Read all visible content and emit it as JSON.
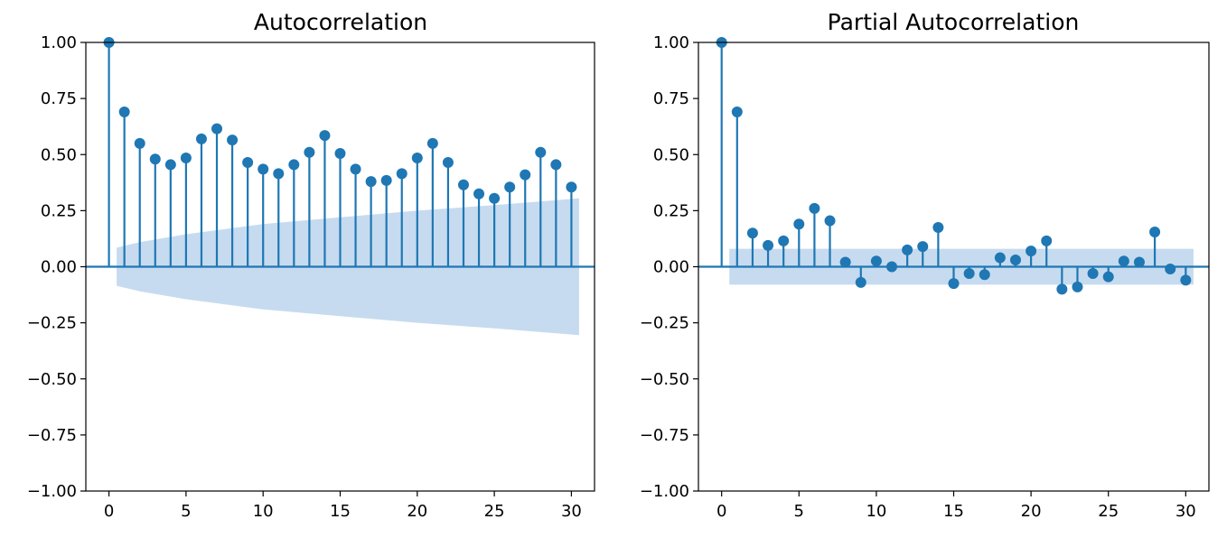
{
  "chart_data": [
    {
      "type": "stem",
      "title": "Autocorrelation",
      "xlabel": "",
      "ylabel": "",
      "xlim": [
        -1.5,
        31.5
      ],
      "ylim": [
        -1.0,
        1.0
      ],
      "xticks": [
        0,
        5,
        10,
        15,
        20,
        25,
        30
      ],
      "yticks": [
        -1.0,
        -0.75,
        -0.5,
        -0.25,
        0.0,
        0.25,
        0.5,
        0.75,
        1.0
      ],
      "xtick_labels": [
        "0",
        "5",
        "10",
        "15",
        "20",
        "25",
        "30"
      ],
      "ytick_labels": [
        "−1.00",
        "−0.75",
        "−0.50",
        "−0.25",
        "0.00",
        "0.25",
        "0.50",
        "0.75",
        "1.00"
      ],
      "x": [
        0,
        1,
        2,
        3,
        4,
        5,
        6,
        7,
        8,
        9,
        10,
        11,
        12,
        13,
        14,
        15,
        16,
        17,
        18,
        19,
        20,
        21,
        22,
        23,
        24,
        25,
        26,
        27,
        28,
        29,
        30
      ],
      "values": [
        1.0,
        0.69,
        0.55,
        0.48,
        0.455,
        0.485,
        0.57,
        0.615,
        0.565,
        0.465,
        0.435,
        0.415,
        0.455,
        0.51,
        0.585,
        0.505,
        0.435,
        0.38,
        0.385,
        0.415,
        0.485,
        0.55,
        0.465,
        0.365,
        0.325,
        0.305,
        0.355,
        0.41,
        0.51,
        0.455,
        0.355
      ],
      "confidence_band": {
        "x_range": [
          0.5,
          30.5
        ],
        "x": [
          0.5,
          2,
          5,
          10,
          15,
          20,
          25,
          30.5
        ],
        "upper": [
          0.085,
          0.11,
          0.145,
          0.19,
          0.22,
          0.25,
          0.275,
          0.305
        ]
      },
      "grid": false
    },
    {
      "type": "stem",
      "title": "Partial Autocorrelation",
      "xlabel": "",
      "ylabel": "",
      "xlim": [
        -1.5,
        31.5
      ],
      "ylim": [
        -1.0,
        1.0
      ],
      "xticks": [
        0,
        5,
        10,
        15,
        20,
        25,
        30
      ],
      "yticks": [
        -1.0,
        -0.75,
        -0.5,
        -0.25,
        0.0,
        0.25,
        0.5,
        0.75,
        1.0
      ],
      "xtick_labels": [
        "0",
        "5",
        "10",
        "15",
        "20",
        "25",
        "30"
      ],
      "ytick_labels": [
        "−1.00",
        "−0.75",
        "−0.50",
        "−0.25",
        "0.00",
        "0.25",
        "0.50",
        "0.75",
        "1.00"
      ],
      "x": [
        0,
        1,
        2,
        3,
        4,
        5,
        6,
        7,
        8,
        9,
        10,
        11,
        12,
        13,
        14,
        15,
        16,
        17,
        18,
        19,
        20,
        21,
        22,
        23,
        24,
        25,
        26,
        27,
        28,
        29,
        30
      ],
      "values": [
        1.0,
        0.69,
        0.15,
        0.095,
        0.115,
        0.19,
        0.26,
        0.205,
        0.02,
        -0.07,
        0.025,
        0.0,
        0.075,
        0.09,
        0.175,
        -0.075,
        -0.03,
        -0.035,
        0.04,
        0.03,
        0.07,
        0.115,
        -0.1,
        -0.09,
        -0.03,
        -0.045,
        0.025,
        0.02,
        0.155,
        -0.01,
        -0.06
      ],
      "confidence_band": {
        "x_range": [
          0.5,
          30.5
        ],
        "x": [
          0.5,
          30.5
        ],
        "upper": [
          0.08,
          0.08
        ]
      },
      "grid": false
    }
  ],
  "colors": {
    "stem": "#1f77b4",
    "band": "#c6dbef",
    "axis": "#000000"
  }
}
